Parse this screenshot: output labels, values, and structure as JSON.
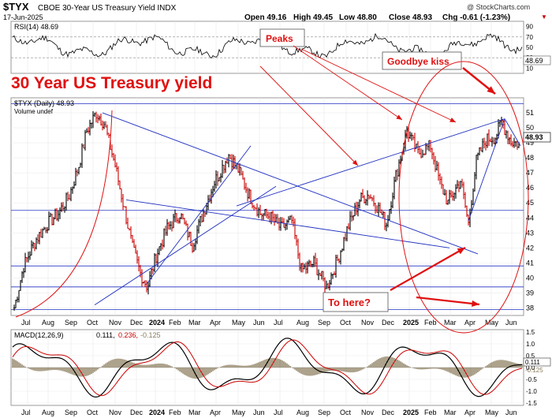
{
  "header": {
    "symbol": "$TYX",
    "name": "CBOE 30-Year US Treasury Yield INDX",
    "date": "17-Jun-2025",
    "open": "Open 49.16",
    "high": "High 49.45",
    "low": "Low 48.80",
    "close": "Close 48.93",
    "chg": "Chg -0.61 (-1.23%)",
    "chg_arrow": "▼",
    "credit": "@ StockCharts.com"
  },
  "rsi": {
    "label": "RSI(14) 48.69",
    "ticks": [
      "90",
      "70",
      "50",
      "30",
      "10"
    ],
    "value_tag": "48.69"
  },
  "price": {
    "legend_line1": "$TYX (Daily) 48.93",
    "legend_line2": "Volume undef",
    "value_tag": "48.93",
    "yticks": [
      "51",
      "50",
      "49",
      "48",
      "47",
      "46",
      "45",
      "44",
      "43",
      "42",
      "41",
      "40",
      "39",
      "38"
    ]
  },
  "macd": {
    "label": "MACD(12,26,9)",
    "v1": "0.111,",
    "v2": "0.236,",
    "v3": "-0.125",
    "yticks": [
      "1.5",
      "1.0",
      "0.5",
      "0.0",
      "-0.5",
      "-1.0",
      "-1.5"
    ],
    "tag1": "0.111",
    "tag2": "-0.125"
  },
  "xaxis": [
    "Jul",
    "Aug",
    "Sep",
    "Oct",
    "Nov",
    "Dec",
    "2024",
    "Feb",
    "Mar",
    "Apr",
    "May",
    "Jun",
    "Jul",
    "Aug",
    "Sep",
    "Oct",
    "Nov",
    "Dec",
    "2025",
    "Feb",
    "Mar",
    "Apr",
    "May",
    "Jun"
  ],
  "annotations": {
    "title": "30 Year US Treasury yield",
    "peaks": "Peaks",
    "goodbye": "Goodbye kiss",
    "tohere": "To here?"
  },
  "colors": {
    "annotation_red": "#e01010",
    "trendline_blue": "#2030c0",
    "up_bar": "#000000",
    "down_bar": "#cc0000",
    "macd_signal": "#cc0000",
    "hist": "#8a7a5a"
  },
  "chart_data": {
    "type": "ohlc",
    "title": "$TYX (Daily)",
    "series": [
      {
        "name": "$TYX",
        "x": [
          "Jul",
          "Aug",
          "Sep",
          "Oct",
          "Nov",
          "Dec",
          "2024",
          "Feb",
          "Mar",
          "Apr",
          "May",
          "Jun",
          "Jul",
          "Aug",
          "Sep",
          "Oct",
          "Nov",
          "Dec",
          "2025",
          "Feb",
          "Mar",
          "Apr",
          "May",
          "Jun"
        ],
        "values": [
          39.0,
          42.0,
          43.5,
          50.5,
          48.5,
          43.0,
          40.5,
          43.5,
          44.5,
          47.0,
          48.5,
          44.5,
          44.0,
          43.0,
          39.5,
          43.0,
          45.5,
          43.5,
          49.5,
          47.5,
          46.0,
          43.5,
          49.5,
          48.93
        ]
      }
    ],
    "ylim": [
      37.5,
      52
    ],
    "rsi_value": 48.69,
    "macd": {
      "macd": 0.111,
      "signal": 0.236,
      "hist": -0.125
    }
  }
}
